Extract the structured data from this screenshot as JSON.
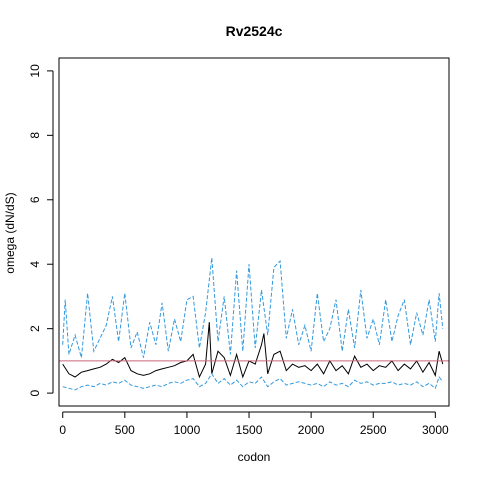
{
  "chart_data": {
    "type": "line",
    "title": "Rv2524c",
    "xlabel": "codon",
    "ylabel": "omega (dN/dS)",
    "xlim": [
      -30,
      3110
    ],
    "ylim": [
      -0.4,
      10.4
    ],
    "x_ticks": [
      0,
      500,
      1000,
      1500,
      2000,
      2500,
      3000
    ],
    "y_ticks": [
      0,
      2,
      4,
      6,
      8,
      10
    ],
    "reference_line": {
      "y": 1,
      "color": "#cc6677"
    },
    "grid": false,
    "legend": "none",
    "series": [
      {
        "role": "estimate",
        "color": "#000000",
        "style": "solid",
        "x": [
          0,
          50,
          100,
          150,
          200,
          250,
          300,
          350,
          400,
          450,
          500,
          550,
          600,
          650,
          700,
          750,
          800,
          850,
          900,
          950,
          1000,
          1050,
          1100,
          1150,
          1180,
          1200,
          1250,
          1300,
          1350,
          1400,
          1450,
          1500,
          1550,
          1600,
          1620,
          1650,
          1700,
          1750,
          1800,
          1850,
          1900,
          1950,
          2000,
          2050,
          2100,
          2150,
          2200,
          2250,
          2300,
          2350,
          2400,
          2450,
          2500,
          2550,
          2600,
          2650,
          2700,
          2750,
          2800,
          2850,
          2900,
          2950,
          3000,
          3030,
          3060
        ],
        "y": [
          0.9,
          0.6,
          0.5,
          0.65,
          0.7,
          0.75,
          0.8,
          0.9,
          1.05,
          0.95,
          1.1,
          0.7,
          0.6,
          0.55,
          0.6,
          0.7,
          0.75,
          0.8,
          0.85,
          0.95,
          1.0,
          1.2,
          0.5,
          0.9,
          2.2,
          0.6,
          1.3,
          1.1,
          0.55,
          1.2,
          0.5,
          1.0,
          0.9,
          1.5,
          1.85,
          0.6,
          1.2,
          1.3,
          0.7,
          0.9,
          0.8,
          0.85,
          0.7,
          0.9,
          0.6,
          1.0,
          0.7,
          0.85,
          0.6,
          1.15,
          0.8,
          0.9,
          0.7,
          0.85,
          0.8,
          1.0,
          0.7,
          0.9,
          0.75,
          1.0,
          0.65,
          0.95,
          0.55,
          1.3,
          0.9
        ]
      },
      {
        "role": "upper bound",
        "color": "#3399dd",
        "style": "dashed",
        "x": [
          0,
          20,
          50,
          100,
          150,
          200,
          250,
          300,
          350,
          400,
          450,
          500,
          550,
          600,
          650,
          700,
          750,
          800,
          850,
          900,
          950,
          1000,
          1050,
          1100,
          1150,
          1200,
          1250,
          1300,
          1350,
          1400,
          1450,
          1500,
          1550,
          1600,
          1650,
          1700,
          1750,
          1800,
          1850,
          1900,
          1950,
          2000,
          2050,
          2100,
          2150,
          2200,
          2250,
          2300,
          2350,
          2400,
          2450,
          2500,
          2550,
          2600,
          2650,
          2700,
          2750,
          2800,
          2850,
          2900,
          2950,
          3000,
          3030,
          3060
        ],
        "y": [
          1.5,
          2.9,
          1.2,
          1.8,
          1.1,
          3.1,
          1.3,
          1.7,
          2.1,
          3.0,
          1.6,
          3.1,
          1.4,
          1.9,
          1.1,
          2.2,
          1.5,
          2.8,
          1.3,
          2.3,
          1.6,
          2.9,
          3.0,
          1.4,
          2.5,
          4.2,
          1.6,
          3.0,
          1.2,
          3.8,
          1.3,
          4.0,
          1.4,
          3.2,
          1.8,
          3.9,
          4.1,
          1.7,
          2.6,
          1.5,
          2.1,
          1.3,
          3.1,
          1.6,
          2.0,
          2.9,
          1.3,
          2.6,
          1.4,
          3.2,
          1.7,
          2.3,
          1.5,
          2.9,
          1.6,
          2.4,
          2.9,
          1.5,
          2.5,
          1.8,
          2.9,
          1.6,
          3.1,
          2.0
        ]
      },
      {
        "role": "lower bound",
        "color": "#3399dd",
        "style": "dashed",
        "x": [
          0,
          50,
          100,
          150,
          200,
          250,
          300,
          350,
          400,
          450,
          500,
          550,
          600,
          650,
          700,
          750,
          800,
          850,
          900,
          950,
          1000,
          1050,
          1100,
          1150,
          1200,
          1250,
          1300,
          1350,
          1400,
          1450,
          1500,
          1550,
          1600,
          1650,
          1700,
          1750,
          1800,
          1850,
          1900,
          1950,
          2000,
          2050,
          2100,
          2150,
          2200,
          2250,
          2300,
          2350,
          2400,
          2450,
          2500,
          2550,
          2600,
          2650,
          2700,
          2750,
          2800,
          2850,
          2900,
          2950,
          3000,
          3030,
          3060
        ],
        "y": [
          0.2,
          0.15,
          0.1,
          0.2,
          0.25,
          0.2,
          0.3,
          0.25,
          0.35,
          0.3,
          0.4,
          0.25,
          0.2,
          0.15,
          0.2,
          0.25,
          0.2,
          0.3,
          0.35,
          0.3,
          0.4,
          0.45,
          0.2,
          0.3,
          0.6,
          0.3,
          0.45,
          0.25,
          0.4,
          0.2,
          0.35,
          0.3,
          0.5,
          0.2,
          0.35,
          0.45,
          0.25,
          0.3,
          0.35,
          0.3,
          0.25,
          0.3,
          0.2,
          0.35,
          0.25,
          0.3,
          0.2,
          0.4,
          0.3,
          0.35,
          0.25,
          0.3,
          0.3,
          0.35,
          0.25,
          0.3,
          0.25,
          0.35,
          0.2,
          0.3,
          0.15,
          0.5,
          0.35
        ]
      }
    ]
  }
}
